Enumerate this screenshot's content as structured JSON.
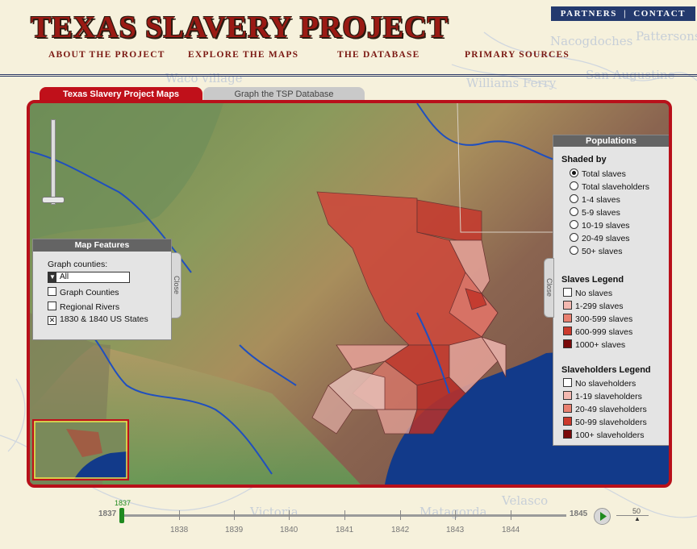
{
  "header": {
    "title": "TEXAS SLAVERY PROJECT",
    "top_links": {
      "partners": "PARTNERS",
      "separator": "|",
      "contact": "CONTACT"
    },
    "nav": [
      "ABOUT THE PROJECT",
      "EXPLORE THE MAPS",
      "THE DATABASE",
      "PRIMARY SOURCES"
    ]
  },
  "background_labels": [
    "Nacogdoches",
    "Pattersons Ferry",
    "Waco village",
    "Williams Ferry",
    "San Augustine",
    "Velasco",
    "Victoria",
    "Matagorda"
  ],
  "tabs": {
    "active": "Texas Slavery Project Maps",
    "inactive": "Graph the TSP Database"
  },
  "map_features": {
    "title": "Map Features",
    "graph_counties_label": "Graph counties:",
    "dropdown_value": "All",
    "options": [
      {
        "label": "Graph Counties",
        "checked": false
      },
      {
        "label": "Regional Rivers",
        "checked": false
      },
      {
        "label": "1830 & 1840 US States",
        "checked": true
      }
    ],
    "close": "Close"
  },
  "populations": {
    "title": "Populations",
    "shaded_by_label": "Shaded by",
    "shaded_by": [
      {
        "label": "Total slaves",
        "selected": true
      },
      {
        "label": "Total slaveholders",
        "selected": false
      },
      {
        "label": "1-4 slaves",
        "selected": false
      },
      {
        "label": "5-9 slaves",
        "selected": false
      },
      {
        "label": "10-19 slaves",
        "selected": false
      },
      {
        "label": "20-49 slaves",
        "selected": false
      },
      {
        "label": "50+ slaves",
        "selected": false
      }
    ],
    "slaves_legend_title": "Slaves Legend",
    "slaves_legend": [
      {
        "label": "No slaves",
        "color": "#ffffff"
      },
      {
        "label": "1-299 slaves",
        "color": "#f3b8b0"
      },
      {
        "label": "300-599 slaves",
        "color": "#e98070"
      },
      {
        "label": "600-999 slaves",
        "color": "#cc3a2c"
      },
      {
        "label": "1000+ slaves",
        "color": "#7a0a0a"
      }
    ],
    "slaveholders_legend_title": "Slaveholders Legend",
    "slaveholders_legend": [
      {
        "label": "No slaveholders",
        "color": "#ffffff"
      },
      {
        "label": "1-19 slaveholders",
        "color": "#f3b8b0"
      },
      {
        "label": "20-49 slaveholders",
        "color": "#e98070"
      },
      {
        "label": "50-99 slaveholders",
        "color": "#cc3a2c"
      },
      {
        "label": "100+ slaveholders",
        "color": "#7a0a0a"
      }
    ],
    "close": "Close"
  },
  "timeline": {
    "start": "1837",
    "end": "1845",
    "current": "1837",
    "years": [
      "1838",
      "1839",
      "1840",
      "1841",
      "1842",
      "1843",
      "1844"
    ],
    "speed": "50"
  },
  "colors": {
    "accent": "#b8101a",
    "nav_blue": "#243a6e",
    "water": "#123a8a",
    "slider": "#1f8a1f"
  }
}
